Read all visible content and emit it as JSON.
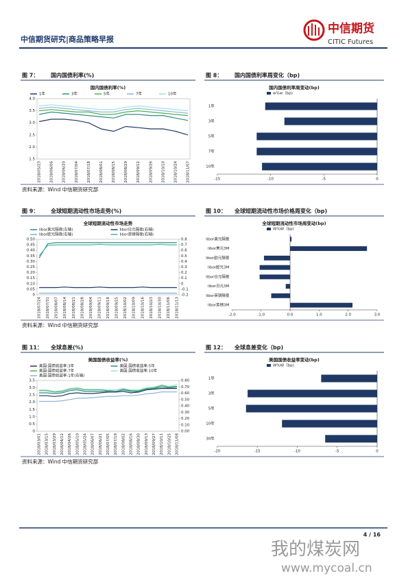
{
  "header": {
    "title": "中信期货研究|商品策略早报",
    "logo_cn": "中信期货",
    "logo_en": "CITIC Futures"
  },
  "figures": [
    {
      "number": "图 7：",
      "caption": "国内国债利率(%)",
      "source": "资料来源：Wind  中信期货研究部",
      "chart_data": {
        "type": "line",
        "title": "国内国债利率(%)",
        "categories": [
          "2018/05/23",
          "2018/06/06",
          "2018/06/20",
          "2018/07/04",
          "2018/07/18",
          "2018/08/01",
          "2018/08/15",
          "2018/08/29",
          "2018/09/12",
          "2018/09/26",
          "2018/10/10",
          "2018/10/24",
          "2018/11/07"
        ],
        "series": [
          {
            "name": "1年",
            "color": "#1f3864",
            "values": [
              3.05,
              3.15,
              3.15,
              3.1,
              3.0,
              2.75,
              2.65,
              2.85,
              2.8,
              2.75,
              2.75,
              2.65,
              2.5
            ]
          },
          {
            "name": "3年",
            "color": "#2e8b8b",
            "values": [
              3.35,
              3.45,
              3.4,
              3.35,
              3.3,
              3.25,
              3.2,
              3.35,
              3.35,
              3.3,
              3.3,
              3.2,
              3.1
            ]
          },
          {
            "name": "5年",
            "color": "#4caf50",
            "values": [
              3.5,
              3.55,
              3.5,
              3.45,
              3.45,
              3.35,
              3.35,
              3.45,
              3.5,
              3.45,
              3.4,
              3.35,
              3.3
            ]
          },
          {
            "name": "7年",
            "color": "#8fb3d9",
            "values": [
              3.6,
              3.65,
              3.6,
              3.55,
              3.5,
              3.45,
              3.45,
              3.55,
              3.6,
              3.55,
              3.5,
              3.45,
              3.4
            ]
          },
          {
            "name": "10年",
            "color": "#9be0e0",
            "values": [
              3.7,
              3.75,
              3.7,
              3.65,
              3.6,
              3.55,
              3.55,
              3.65,
              3.7,
              3.65,
              3.6,
              3.55,
              3.5
            ]
          }
        ],
        "ylim": [
          1.5,
          4.0
        ],
        "yticks": [
          1.5,
          {
            "value": 2,
            "label": "2.0"
          },
          2.5,
          {
            "value": 3,
            "label": "3.0"
          },
          3.5,
          {
            "value": 4,
            "label": "4.0"
          }
        ]
      }
    },
    {
      "number": "图 8：",
      "caption": "国内国债利率周变化（bp)",
      "chart_data": {
        "type": "hbar",
        "title": "国内国债利率周变动(bp)",
        "legend": "w%w（bp)",
        "color": "#1f3864",
        "categories": [
          "1年",
          "3年",
          "5年",
          "7年",
          "10年"
        ],
        "values": [
          -10.5,
          -8.7,
          -11.3,
          -11.3,
          -10.8
        ],
        "xlim": [
          -15,
          0
        ],
        "xticks": [
          -15,
          -10,
          -5,
          0
        ]
      }
    },
    {
      "number": "图 9：",
      "caption": "全球短期流动性市场走势(%)",
      "source": "资料来源：Wind  中信期货研究部",
      "chart_data": {
        "type": "line",
        "title": "全球短期流动性市场走势",
        "categories": [
          "2018/07/24",
          "2018/07/31",
          "2018/08/07",
          "2018/08/14",
          "2018/08/21",
          "2018/08/28",
          "2018/09/04",
          "2018/09/11",
          "2018/09/18",
          "2018/09/25",
          "2018/10/02",
          "2018/10/09",
          "2018/10/16",
          "2018/10/23",
          "2018/10/30",
          "2018/11/06",
          "2018/11/13"
        ],
        "series": [
          {
            "name": "libor美元隔夜(左轴)",
            "color": "#2e8b8b",
            "values": [
              0.33,
              0.46,
              0.47,
              0.47,
              0.47,
              0.47,
              0.47,
              0.47,
              0.47,
              0.47,
              0.47,
              0.47,
              0.47,
              0.47,
              0.47,
              0.47,
              0.47
            ]
          },
          {
            "name": "libor日元隔夜(右轴)",
            "color": "#1f3864",
            "axis": "y2",
            "values": [
              -0.07,
              -0.07,
              -0.07,
              -0.06,
              -0.07,
              -0.07,
              -0.07,
              -0.06,
              -0.07,
              -0.07,
              -0.07,
              -0.07,
              -0.06,
              -0.07,
              -0.07,
              -0.07,
              -0.07
            ]
          },
          {
            "name": "libor欧元隔夜(右轴)",
            "color": "#7fb1d6",
            "axis": "y2",
            "values": [
              -0.17,
              -0.17,
              -0.17,
              -0.17,
              -0.17,
              -0.17,
              -0.17,
              -0.17,
              -0.17,
              -0.17,
              -0.17,
              -0.17,
              -0.17,
              -0.17,
              -0.17,
              -0.17,
              -0.17
            ]
          },
          {
            "name": "libor英镑隔夜(右轴)",
            "color": "#4bb3a0",
            "axis": "y2",
            "values": [
              0.5,
              0.69,
              0.7,
              0.7,
              0.7,
              0.7,
              0.7,
              0.71,
              0.7,
              0.7,
              0.7,
              0.7,
              0.7,
              0.7,
              0.71,
              0.7,
              0.7
            ]
          }
        ],
        "ylim": [
          0,
          0.5
        ],
        "yticks": [
          0,
          0.05,
          {
            "value": 0.1,
            "label": "0.10"
          },
          0.15,
          {
            "value": 0.2,
            "label": "0.20"
          },
          0.25,
          {
            "value": 0.3,
            "label": "0.30"
          },
          0.35,
          {
            "value": 0.4,
            "label": "0.40"
          },
          0.45,
          {
            "value": 0.5,
            "label": "0.50"
          }
        ],
        "y2lim": [
          -0.2,
          0.8
        ],
        "y2ticks": [
          -0.2,
          -0.1,
          0,
          0.1,
          0.2,
          0.3,
          0.4,
          0.5,
          0.6,
          0.7,
          0.8
        ]
      }
    },
    {
      "number": "图 10：",
      "caption": "全球短期流动性市场价格周变化（bp)",
      "chart_data": {
        "type": "hbar",
        "title": "全球短期流动性市场周变动(bp)",
        "legend": "W%W（bp)",
        "color": "#1f3864",
        "categories": [
          "libor美元隔夜",
          "libor美元3M",
          "libor欧元隔夜",
          "libor欧元3M",
          "libor日元隔夜",
          "libor日元3M",
          "libor英镑隔夜",
          "libor英镑3M"
        ],
        "values": [
          0.05,
          2.65,
          -0.9,
          -1.05,
          -1.05,
          -0.15,
          -0.65,
          2.15
        ],
        "xlim": [
          -2,
          3
        ],
        "xticks": [
          {
            "value": -2,
            "label": "-2.0"
          },
          {
            "value": -1,
            "label": "-1.0"
          },
          {
            "value": 0,
            "label": "0.0"
          },
          {
            "value": 1,
            "label": "1.0"
          },
          {
            "value": 2,
            "label": "2.0"
          },
          {
            "value": 3,
            "label": "3.0"
          }
        ]
      }
    },
    {
      "number": "图 11：",
      "caption": "全球息差(%)",
      "source": "资料来源：Wind  中信期货研究部",
      "chart_data": {
        "type": "line",
        "title": "美国国债收益率(%)",
        "categories": [
          "2018/03/01",
          "2018/03/15",
          "2018/03/29",
          "2018/04/12",
          "2018/04/26",
          "2018/05/10",
          "2018/05/24",
          "2018/06/07",
          "2018/06/21",
          "2018/07/05",
          "2018/07/19",
          "2018/08/02",
          "2018/08/16",
          "2018/08/30",
          "2018/09/13",
          "2018/09/27",
          "2018/10/11",
          "2018/10/25",
          "2018/11/08"
        ],
        "series": [
          {
            "name": "美国:国债收益率:3年",
            "color": "#1f3864",
            "values": [
              2.45,
              2.45,
              2.4,
              2.45,
              2.6,
              2.65,
              2.6,
              2.6,
              2.65,
              2.7,
              2.7,
              2.75,
              2.65,
              2.7,
              2.85,
              2.9,
              2.95,
              2.95,
              2.95
            ]
          },
          {
            "name": "美国:国债收益率:5年",
            "color": "#2e8b8b",
            "values": [
              2.65,
              2.65,
              2.6,
              2.65,
              2.8,
              2.85,
              2.75,
              2.75,
              2.75,
              2.75,
              2.75,
              2.85,
              2.75,
              2.75,
              2.9,
              2.95,
              3.05,
              3.0,
              3.05
            ]
          },
          {
            "name": "美国:国债收益率:7年",
            "color": "#4caf50",
            "values": [
              2.8,
              2.8,
              2.7,
              2.75,
              2.9,
              2.95,
              2.85,
              2.85,
              2.85,
              2.8,
              2.85,
              2.9,
              2.8,
              2.8,
              2.95,
              3.0,
              3.15,
              3.05,
              3.1
            ]
          },
          {
            "name": "美国:国债收益率:10年",
            "color": "#9be0e0",
            "values": [
              2.85,
              2.85,
              2.75,
              2.8,
              2.95,
              3.0,
              2.9,
              2.9,
              2.9,
              2.85,
              2.85,
              2.95,
              2.85,
              2.85,
              3.0,
              3.05,
              3.2,
              3.1,
              3.2
            ]
          },
          {
            "name": "美国:国债收益率:1年(右轴)",
            "color": "#8fb3d9",
            "axis": "y2",
            "values": [
              0.47,
              0.47,
              0.47,
              0.48,
              0.5,
              0.52,
              0.52,
              0.53,
              0.54,
              0.55,
              0.55,
              0.56,
              0.56,
              0.57,
              0.59,
              0.6,
              0.62,
              0.62,
              0.62
            ]
          }
        ],
        "ylim": [
          0,
          3.5
        ],
        "yticks": [
          0,
          0.5,
          {
            "value": 1,
            "label": "1.0"
          },
          1.5,
          {
            "value": 2,
            "label": "2.0"
          },
          2.5,
          {
            "value": 3,
            "label": "3.0"
          },
          3.5
        ],
        "y2lim": [
          0,
          0.8
        ],
        "y2ticks": [
          {
            "value": 0,
            "label": "0.00"
          },
          {
            "value": 0.1,
            "label": "0.10"
          },
          {
            "value": 0.2,
            "label": "0.20"
          },
          {
            "value": 0.3,
            "label": "0.30"
          },
          {
            "value": 0.4,
            "label": "0.40"
          },
          {
            "value": 0.5,
            "label": "0.50"
          },
          {
            "value": 0.6,
            "label": "0.60"
          },
          {
            "value": 0.7,
            "label": "0.70"
          },
          {
            "value": 0.8,
            "label": "0.80"
          }
        ]
      }
    },
    {
      "number": "图 12：",
      "caption": "全球息差变化（bp)",
      "chart_data": {
        "type": "hbar",
        "title": "美国国债收益率变动(bp)",
        "legend": "W%W（bp)",
        "color": "#1f3864",
        "categories": [
          "1年",
          "3年",
          "5年",
          "10年",
          "30年"
        ],
        "values": [
          -7,
          -16.2,
          -16.4,
          -11.9,
          -6.5
        ],
        "xlim": [
          -20,
          0
        ],
        "xticks": [
          -20,
          -15,
          -10,
          -5,
          0
        ]
      }
    }
  ],
  "page_number": "4 / 16",
  "watermark": {
    "cn": "我的煤炭网",
    "url": "www.mycoal.cn"
  }
}
